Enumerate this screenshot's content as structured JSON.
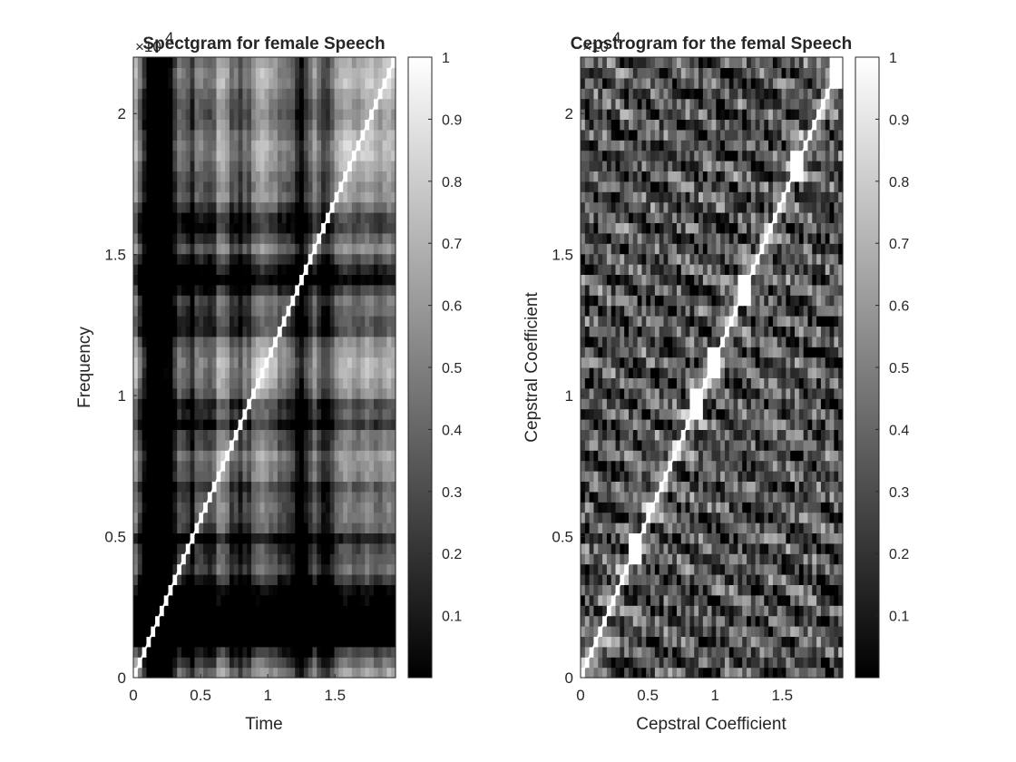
{
  "chart_data": [
    {
      "type": "heatmap",
      "title": "Spectgram for female Speech",
      "xlabel": "Time",
      "ylabel": "Frequency",
      "xlim": [
        0,
        1.95
      ],
      "ylim": [
        0,
        2.2
      ],
      "y_exponent_label": "×10",
      "y_exponent_power": "4",
      "x_ticks": [
        0,
        0.5,
        1,
        1.5
      ],
      "x_tick_labels": [
        "0",
        "0.5",
        "1",
        "1.5"
      ],
      "y_ticks": [
        0,
        0.5,
        1,
        1.5,
        2
      ],
      "y_tick_labels": [
        "0",
        "0.5",
        "1",
        "1.5",
        "2"
      ],
      "colormap": "gray",
      "colorbar": {
        "range": [
          0,
          1
        ],
        "ticks": [
          0.1,
          0.2,
          0.3,
          0.4,
          0.5,
          0.6,
          0.7,
          0.8,
          0.9,
          1
        ],
        "tick_labels": [
          "0.1",
          "0.2",
          "0.3",
          "0.4",
          "0.5",
          "0.6",
          "0.7",
          "0.8",
          "0.9",
          "1"
        ]
      },
      "diagonal_value": 1,
      "base_level": 0.62,
      "dark_bands": [
        0.12,
        0.17,
        0.23,
        0.44,
        0.74,
        1.24,
        1.27,
        1.4,
        1.44,
        0.05,
        0.1,
        0.15,
        0.2,
        0.25,
        0.3,
        0.54,
        0.38,
        1.2,
        0.82,
        0.12,
        1.12
      ]
    },
    {
      "type": "heatmap",
      "title": "Cepstrogram for the femal Speech",
      "xlabel": "Cepstral Coefficient",
      "ylabel": "Cepstral Coefficient",
      "xlim": [
        0,
        1.95
      ],
      "ylim": [
        0,
        2.2
      ],
      "y_exponent_label": "×10",
      "y_exponent_power": "4",
      "x_ticks": [
        0,
        0.5,
        1,
        1.5
      ],
      "x_tick_labels": [
        "0",
        "0.5",
        "1",
        "1.5"
      ],
      "y_ticks": [
        0,
        0.5,
        1,
        1.5,
        2
      ],
      "y_tick_labels": [
        "0",
        "0.5",
        "1",
        "1.5",
        "2"
      ],
      "colormap": "gray",
      "colorbar": {
        "range": [
          0,
          1
        ],
        "ticks": [
          0.1,
          0.2,
          0.3,
          0.4,
          0.5,
          0.6,
          0.7,
          0.8,
          0.9,
          1
        ],
        "tick_labels": [
          "0.1",
          "0.2",
          "0.3",
          "0.4",
          "0.5",
          "0.6",
          "0.7",
          "0.8",
          "0.9",
          "1"
        ]
      },
      "diagonal_value": 1,
      "base_level": 0.3,
      "bright_blocks": [
        0.38,
        0.84,
        0.98,
        1.2,
        1.6,
        1.9
      ]
    }
  ]
}
